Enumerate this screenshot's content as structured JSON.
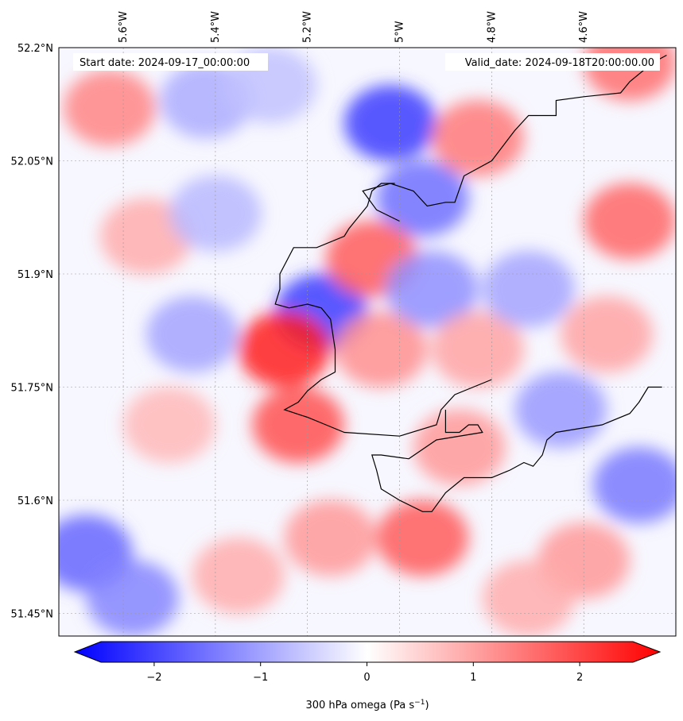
{
  "map": {
    "start_label": "Start date: 2024-09-17_00:00:00",
    "valid_label": "Valid_date: 2024-09-18T20:00:00.00",
    "lon_ticks": [
      {
        "value": -5.6,
        "label": "5.6°W"
      },
      {
        "value": -5.4,
        "label": "5.4°W"
      },
      {
        "value": -5.2,
        "label": "5.2°W"
      },
      {
        "value": -5.0,
        "label": "5°W"
      },
      {
        "value": -4.8,
        "label": "4.8°W"
      },
      {
        "value": -4.6,
        "label": "4.6°W"
      }
    ],
    "lat_ticks": [
      {
        "value": 52.2,
        "label": "52.2°N"
      },
      {
        "value": 52.05,
        "label": "52.05°N"
      },
      {
        "value": 51.9,
        "label": "51.9°N"
      },
      {
        "value": 51.75,
        "label": "51.75°N"
      },
      {
        "value": 51.6,
        "label": "51.6°N"
      },
      {
        "value": 51.45,
        "label": "51.45°N"
      }
    ],
    "lon_range": [
      -5.74,
      -4.4
    ],
    "lat_range": [
      51.42,
      52.2
    ],
    "gridlines": true,
    "field_colors": {
      "negative": "#0000ff",
      "zero": "#ffffff",
      "positive": "#ff0000"
    }
  },
  "colorbar": {
    "min": -2.5,
    "max": 2.5,
    "ticks": [
      {
        "value": -2,
        "label": "−2"
      },
      {
        "value": -1,
        "label": "−1"
      },
      {
        "value": 0,
        "label": "0"
      },
      {
        "value": 1,
        "label": "1"
      },
      {
        "value": 2,
        "label": "2"
      }
    ],
    "label_main": "300 hPa omega (Pa s",
    "label_sup": "−1",
    "label_end": ")"
  },
  "field_blobs": [
    {
      "lon": -5.63,
      "lat": 52.12,
      "value": 1.2
    },
    {
      "lon": -5.55,
      "lat": 51.95,
      "value": 0.8
    },
    {
      "lon": -5.42,
      "lat": 52.13,
      "value": -0.8
    },
    {
      "lon": -5.28,
      "lat": 52.15,
      "value": -0.6
    },
    {
      "lon": -5.02,
      "lat": 52.1,
      "value": -1.9
    },
    {
      "lon": -4.95,
      "lat": 52.0,
      "value": -1.4
    },
    {
      "lon": -4.83,
      "lat": 52.08,
      "value": 1.3
    },
    {
      "lon": -4.5,
      "lat": 52.18,
      "value": 1.4
    },
    {
      "lon": -4.5,
      "lat": 51.97,
      "value": 1.5
    },
    {
      "lon": -5.4,
      "lat": 51.98,
      "value": -0.7
    },
    {
      "lon": -5.17,
      "lat": 51.85,
      "value": -1.9
    },
    {
      "lon": -5.25,
      "lat": 51.8,
      "value": 2.2
    },
    {
      "lon": -5.22,
      "lat": 51.7,
      "value": 1.7
    },
    {
      "lon": -5.45,
      "lat": 51.82,
      "value": -0.9
    },
    {
      "lon": -5.06,
      "lat": 51.92,
      "value": 1.6
    },
    {
      "lon": -5.04,
      "lat": 51.8,
      "value": 1.1
    },
    {
      "lon": -4.93,
      "lat": 51.88,
      "value": -1.1
    },
    {
      "lon": -4.83,
      "lat": 51.8,
      "value": 0.9
    },
    {
      "lon": -4.72,
      "lat": 51.88,
      "value": -0.9
    },
    {
      "lon": -4.65,
      "lat": 51.72,
      "value": -1.0
    },
    {
      "lon": -4.55,
      "lat": 51.82,
      "value": 0.9
    },
    {
      "lon": -4.48,
      "lat": 51.62,
      "value": -1.3
    },
    {
      "lon": -4.6,
      "lat": 51.52,
      "value": 1.0
    },
    {
      "lon": -4.95,
      "lat": 51.55,
      "value": 1.6
    },
    {
      "lon": -4.87,
      "lat": 51.67,
      "value": 1.0
    },
    {
      "lon": -5.68,
      "lat": 51.53,
      "value": -1.5
    },
    {
      "lon": -5.58,
      "lat": 51.47,
      "value": -1.2
    },
    {
      "lon": -5.35,
      "lat": 51.5,
      "value": 0.8
    },
    {
      "lon": -5.15,
      "lat": 51.55,
      "value": 1.0
    },
    {
      "lon": -5.5,
      "lat": 51.7,
      "value": 0.7
    },
    {
      "lon": -4.72,
      "lat": 51.47,
      "value": 0.8
    }
  ],
  "coastlines": [
    [
      [
        -5.0,
        51.97
      ],
      [
        -5.05,
        51.985
      ],
      [
        -5.08,
        52.01
      ],
      [
        -5.02,
        52.02
      ],
      [
        -4.97,
        52.01
      ],
      [
        -4.94,
        51.99
      ],
      [
        -4.9,
        51.995
      ],
      [
        -4.88,
        51.995
      ],
      [
        -4.86,
        52.03
      ],
      [
        -4.8,
        52.05
      ],
      [
        -4.75,
        52.09
      ],
      [
        -4.72,
        52.11
      ],
      [
        -4.66,
        52.11
      ],
      [
        -4.66,
        52.13
      ],
      [
        -4.6,
        52.135
      ],
      [
        -4.52,
        52.14
      ],
      [
        -4.5,
        52.155
      ],
      [
        -4.45,
        52.18
      ],
      [
        -4.42,
        52.19
      ]
    ],
    [
      [
        -5.01,
        52.02
      ],
      [
        -5.04,
        52.02
      ],
      [
        -5.06,
        52.01
      ],
      [
        -5.07,
        51.99
      ],
      [
        -5.11,
        51.96
      ],
      [
        -5.12,
        51.95
      ],
      [
        -5.18,
        51.935
      ],
      [
        -5.23,
        51.935
      ],
      [
        -5.26,
        51.9
      ],
      [
        -5.26,
        51.88
      ],
      [
        -5.27,
        51.86
      ],
      [
        -5.24,
        51.855
      ],
      [
        -5.2,
        51.86
      ],
      [
        -5.17,
        51.855
      ],
      [
        -5.15,
        51.84
      ],
      [
        -5.14,
        51.8
      ],
      [
        -5.14,
        51.77
      ],
      [
        -5.17,
        51.76
      ],
      [
        -5.2,
        51.745
      ],
      [
        -5.22,
        51.73
      ],
      [
        -5.25,
        51.72
      ],
      [
        -5.2,
        51.71
      ],
      [
        -5.16,
        51.7
      ],
      [
        -5.12,
        51.69
      ],
      [
        -5.0,
        51.685
      ],
      [
        -4.92,
        51.7
      ],
      [
        -4.91,
        51.72
      ],
      [
        -4.88,
        51.74
      ],
      [
        -4.8,
        51.76
      ]
    ],
    [
      [
        -4.9,
        51.72
      ],
      [
        -4.9,
        51.69
      ],
      [
        -4.87,
        51.69
      ],
      [
        -4.85,
        51.7
      ],
      [
        -4.83,
        51.7
      ],
      [
        -4.82,
        51.69
      ],
      [
        -4.92,
        51.68
      ],
      [
        -4.98,
        51.655
      ],
      [
        -5.04,
        51.66
      ],
      [
        -5.06,
        51.66
      ],
      [
        -5.05,
        51.64
      ],
      [
        -5.04,
        51.615
      ],
      [
        -5.0,
        51.6
      ],
      [
        -4.95,
        51.585
      ],
      [
        -4.93,
        51.585
      ],
      [
        -4.9,
        51.61
      ],
      [
        -4.86,
        51.63
      ],
      [
        -4.8,
        51.63
      ],
      [
        -4.76,
        51.64
      ],
      [
        -4.73,
        51.65
      ],
      [
        -4.71,
        51.645
      ],
      [
        -4.69,
        51.66
      ],
      [
        -4.68,
        51.68
      ],
      [
        -4.66,
        51.69
      ],
      [
        -4.56,
        51.7
      ],
      [
        -4.5,
        51.715
      ],
      [
        -4.48,
        51.73
      ],
      [
        -4.46,
        51.75
      ],
      [
        -4.43,
        51.75
      ]
    ]
  ]
}
